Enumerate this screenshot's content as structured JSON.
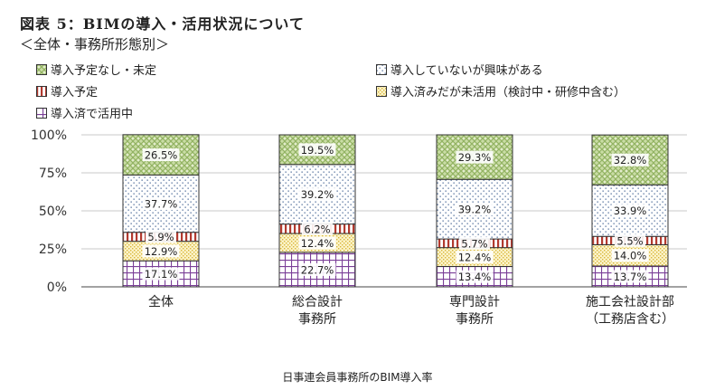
{
  "page": {
    "title": "図表 5：BIMの導入・活用状況について",
    "subtitle": "＜全体・事務所形態別＞",
    "caption": "日事連会員事務所のBIM導入率"
  },
  "chart_data": {
    "type": "bar",
    "stacked": true,
    "percent_axis": true,
    "ylim": [
      0,
      100
    ],
    "yticks": [
      "0%",
      "25%",
      "50%",
      "75%",
      "100%"
    ],
    "categories": [
      [
        "全体"
      ],
      [
        "総合設計",
        "事務所"
      ],
      [
        "専門設計",
        "事務所"
      ],
      [
        "施工会社設計部",
        "（工務店含む）"
      ]
    ],
    "series": [
      {
        "name": "導入済で活用中",
        "pattern": "grid",
        "color": "#7b3f98",
        "values": [
          17.1,
          22.7,
          13.4,
          13.7
        ],
        "labels": [
          "17.1%",
          "22.7%",
          "13.4%",
          "13.7%"
        ]
      },
      {
        "name": "導入済みだが未活用（検討中・研修中含む）",
        "pattern": "dots-yellow",
        "color": "#e8c84a",
        "values": [
          12.9,
          12.4,
          12.4,
          14.0
        ],
        "labels": [
          "12.9%",
          "12.4%",
          "12.4%",
          "14.0%"
        ]
      },
      {
        "name": "導入予定",
        "pattern": "vstripes",
        "color": "#b23a2f",
        "values": [
          5.9,
          6.2,
          5.7,
          5.5
        ],
        "labels": [
          "5.9%",
          "6.2%",
          "5.7%",
          "5.5%"
        ]
      },
      {
        "name": "導入していないが興味がある",
        "pattern": "dots-blue",
        "color": "#5a7aa8",
        "values": [
          37.7,
          39.2,
          39.2,
          33.9
        ],
        "labels": [
          "37.7%",
          "39.2%",
          "39.2%",
          "33.9%"
        ]
      },
      {
        "name": "導入予定なし・未定",
        "pattern": "weave-green",
        "color": "#8fb060",
        "values": [
          26.5,
          19.5,
          29.3,
          32.8
        ],
        "labels": [
          "26.5%",
          "19.5%",
          "29.3%",
          "32.8%"
        ]
      }
    ]
  }
}
